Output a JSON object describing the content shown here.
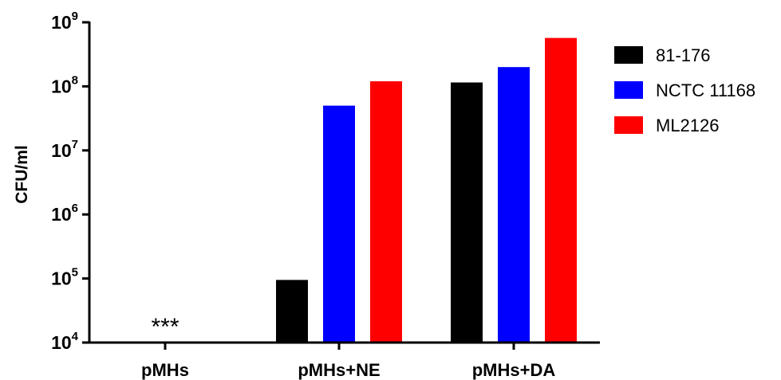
{
  "chart_data": {
    "type": "bar",
    "title": "",
    "xlabel": "",
    "ylabel": "CFU/ml",
    "yscale": "log",
    "ylim": [
      10000,
      1000000000
    ],
    "yticks": [
      {
        "base": "10",
        "exp": "4",
        "value": 10000
      },
      {
        "base": "10",
        "exp": "5",
        "value": 100000
      },
      {
        "base": "10",
        "exp": "6",
        "value": 1000000
      },
      {
        "base": "10",
        "exp": "7",
        "value": 10000000
      },
      {
        "base": "10",
        "exp": "8",
        "value": 100000000
      },
      {
        "base": "10",
        "exp": "9",
        "value": 1000000000
      }
    ],
    "categories": [
      "pMHs",
      "pMHs+NE",
      "pMHs+DA"
    ],
    "series": [
      {
        "name": "81-176",
        "color": "#000000",
        "values": [
          null,
          95000,
          115000000
        ]
      },
      {
        "name": "NCTC 11168",
        "color": "#0000ff",
        "values": [
          null,
          50000000,
          200000000
        ]
      },
      {
        "name": "ML2126",
        "color": "#ff0000",
        "values": [
          null,
          120000000,
          570000000
        ]
      }
    ],
    "annotations": [
      {
        "category": "pMHs",
        "text": "***"
      }
    ],
    "legend_position": "top-right",
    "grid": false
  }
}
